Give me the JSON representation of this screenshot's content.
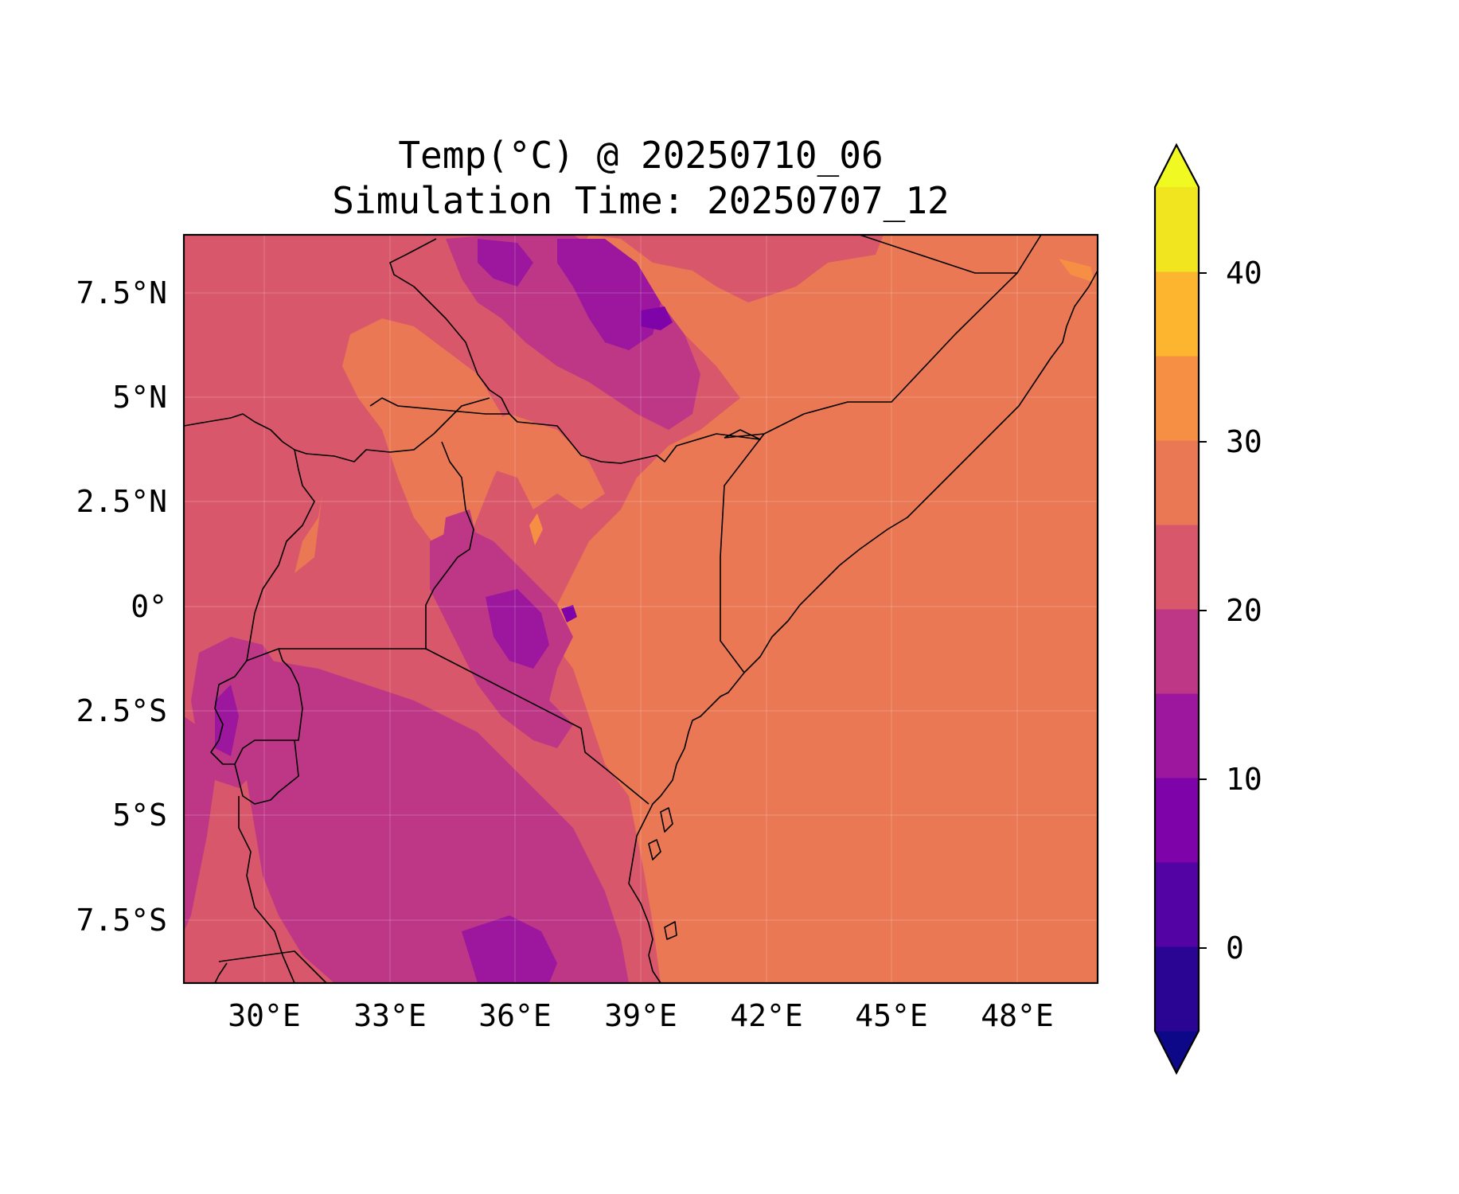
{
  "title": {
    "line1": "Temp(°C) @ 20250710_06",
    "line2": "Simulation Time: 20250707_12"
  },
  "map": {
    "x_ticks": [
      "30°E",
      "33°E",
      "36°E",
      "39°E",
      "42°E",
      "45°E",
      "48°E"
    ],
    "y_ticks": [
      "7.5°N",
      "5°N",
      "2.5°N",
      "0°",
      "2.5°S",
      "5°S",
      "7.5°S"
    ]
  },
  "colorbar": {
    "labels": [
      "40",
      "30",
      "20",
      "10",
      "0"
    ],
    "colors": [
      "#0d0887",
      "#2a0593",
      "#5302a3",
      "#7e03a8",
      "#9c179e",
      "#bd3786",
      "#d8576b",
      "#ea7855",
      "#f68f44",
      "#fdb42f",
      "#f0e51e",
      "#f0f921"
    ]
  },
  "chart_data": {
    "type": "heatmap",
    "title": "Temp(°C) @ 20250710_06\nSimulation Time: 20250707_12",
    "variable": "Temp(°C)",
    "valid_time": "20250710_06",
    "simulation_time": "20250707_12",
    "lon_range": [
      28.1,
      49.9
    ],
    "lat_range": [
      -9.0,
      9.0
    ],
    "x_tick_values": [
      30,
      33,
      36,
      39,
      42,
      45,
      48
    ],
    "y_tick_values": [
      7.5,
      5,
      2.5,
      0,
      -2.5,
      -5,
      -7.5
    ],
    "colorbar_levels": [
      -5,
      0,
      5,
      10,
      15,
      20,
      25,
      30,
      35,
      40,
      45
    ],
    "colorbar_extend": "both",
    "colormap": "plasma",
    "grid": true
  }
}
